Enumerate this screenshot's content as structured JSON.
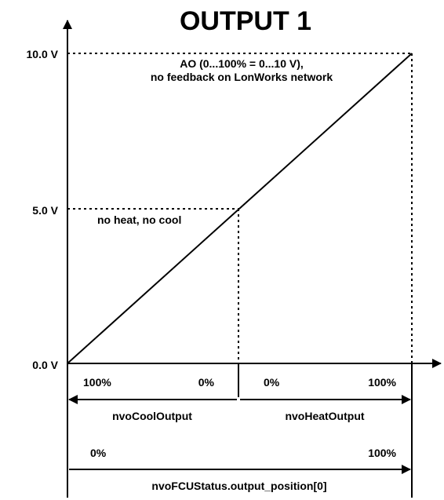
{
  "title": "OUTPUT 1",
  "y_axis": {
    "ticks": [
      "10.0 V",
      "5.0 V",
      "0.0 V"
    ]
  },
  "annotations": {
    "top_line1": "AO (0...100% = 0...10 V),",
    "top_line2": "no feedback on LonWorks network",
    "mid": "no heat, no cool"
  },
  "scales": {
    "cool": {
      "left": "100%",
      "right": "0%",
      "name": "nvoCoolOutput"
    },
    "heat": {
      "left": "0%",
      "right": "100%",
      "name": "nvoHeatOutput"
    },
    "position": {
      "left": "0%",
      "right": "100%",
      "name": "nvoFCUStatus.output_position[0]"
    }
  },
  "chart_data": {
    "type": "line",
    "series": [
      {
        "x": [
          0,
          50,
          100
        ],
        "y": [
          0,
          5,
          10
        ]
      }
    ],
    "ylim": [
      0,
      10
    ],
    "xlim": [
      0,
      100
    ],
    "ytick_labels": [
      "0.0 V",
      "5.0 V",
      "10.0 V"
    ]
  }
}
